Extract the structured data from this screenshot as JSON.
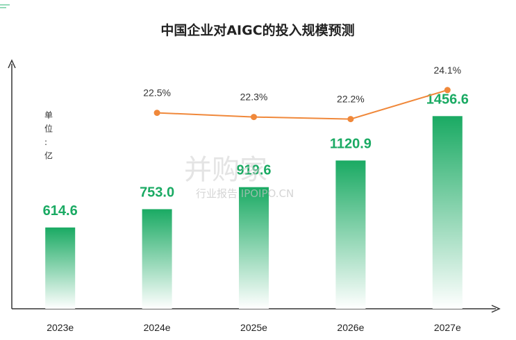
{
  "chart_data": {
    "type": "bar",
    "title": "中国企业对AIGC的投入规模预测",
    "unit_label": "单位：亿",
    "categories": [
      "2023e",
      "2024e",
      "2025e",
      "2026e",
      "2027e"
    ],
    "series": [
      {
        "type": "bar",
        "values": [
          614.6,
          753.0,
          919.6,
          1120.9,
          1456.6
        ],
        "labels": [
          "614.6",
          "753.0",
          "919.6",
          "1120.9",
          "1456.6"
        ]
      },
      {
        "type": "line",
        "values": [
          null,
          22.5,
          22.3,
          22.2,
          24.1
        ],
        "labels": [
          "",
          "22.5%",
          "22.3%",
          "22.2%",
          "24.1%"
        ]
      }
    ],
    "ylim": [
      0,
      1600
    ],
    "colors": {
      "bar_top": "#1aaa63",
      "bar_bottom": "#ffffff",
      "bar_label": "#1aaa63",
      "line": "#f0883a",
      "axis": "#333333"
    },
    "watermark": {
      "main": "并购家",
      "sub": "行业报告 IPOIPO.CN"
    }
  }
}
